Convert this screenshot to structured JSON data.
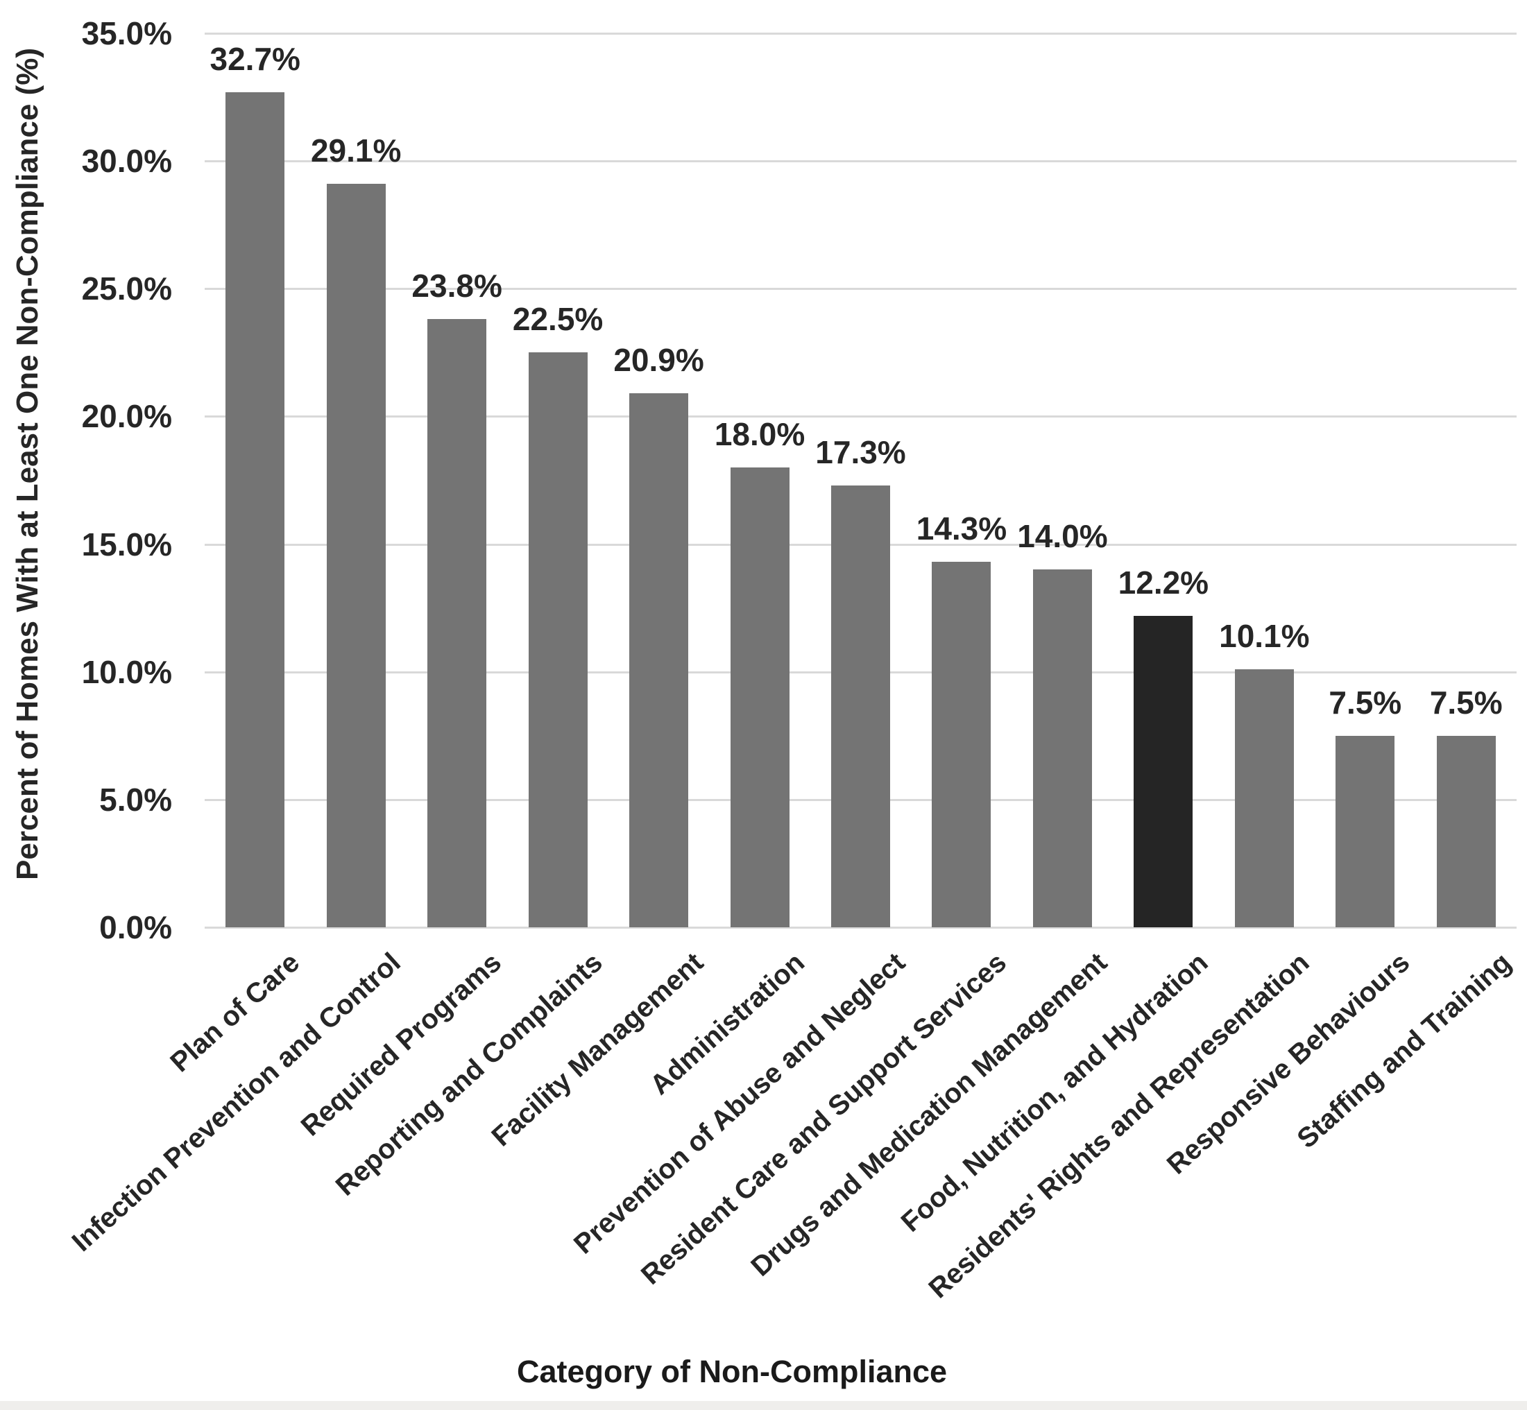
{
  "chart_data": {
    "type": "bar",
    "title": "",
    "xlabel": "Category of Non-Compliance",
    "ylabel": "Percent of Homes With at Least One Non-Compliance (%)",
    "categories": [
      "Plan of Care",
      "Infection Prevention and Control",
      "Required Programs",
      "Reporting and Complaints",
      "Facility Management",
      "Administration",
      "Prevention of Abuse and Neglect",
      "Resident Care and Support Services",
      "Drugs and Medication Management",
      "Food, Nutrition, and Hydration",
      "Residents' Rights and Representation",
      "Responsive Behaviours",
      "Staffing and Training"
    ],
    "values": [
      32.7,
      29.1,
      23.8,
      22.5,
      20.9,
      18.0,
      17.3,
      14.3,
      14.0,
      12.2,
      10.1,
      7.5,
      7.5
    ],
    "value_labels": [
      "32.7%",
      "29.1%",
      "23.8%",
      "22.5%",
      "20.9%",
      "18.0%",
      "17.3%",
      "14.3%",
      "14.0%",
      "12.2%",
      "10.1%",
      "7.5%",
      "7.5%"
    ],
    "highlight_index": 9,
    "ylim": [
      0,
      35
    ],
    "ytick_labels": [
      "0.0%",
      "5.0%",
      "10.0%",
      "15.0%",
      "20.0%",
      "25.0%",
      "30.0%",
      "35.0%"
    ],
    "grid": "horizontal",
    "legend": "none",
    "colors": {
      "bar": "#747474",
      "highlight_bar": "#252525",
      "gridline": "#d9d9d9",
      "text": "#262626",
      "background": "#ffffff",
      "footer_strip": "#efeeec"
    }
  }
}
